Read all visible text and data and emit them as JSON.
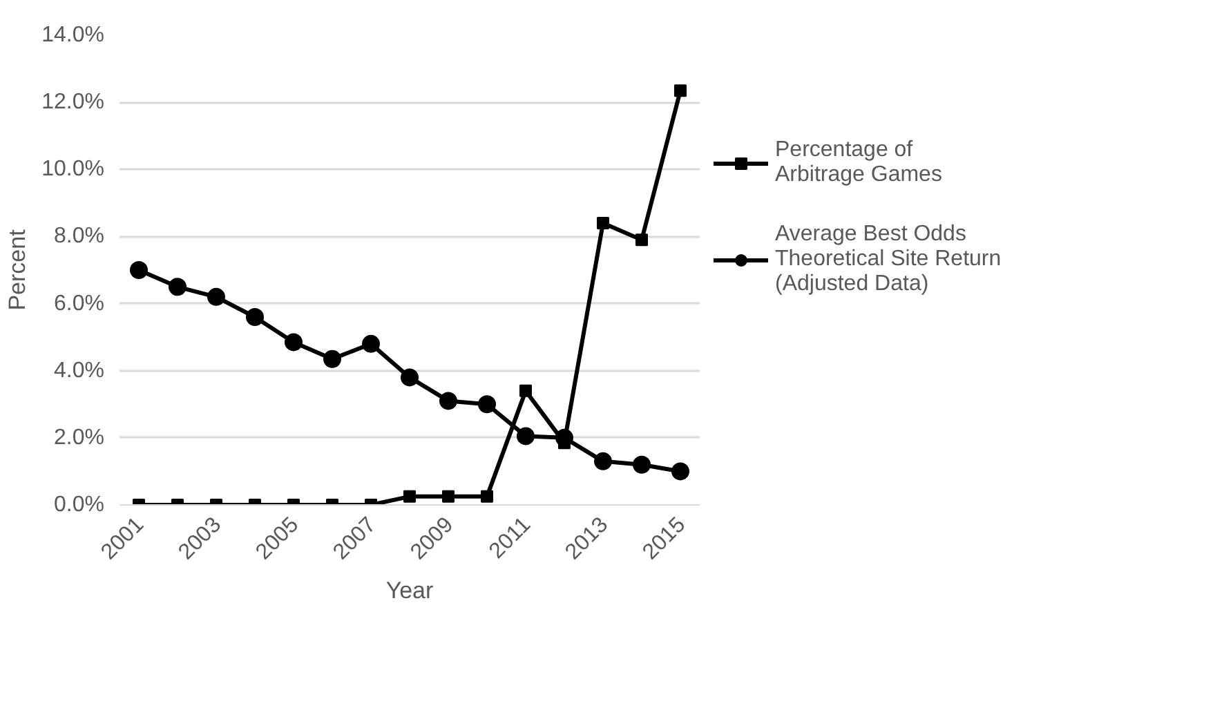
{
  "chart_data": {
    "type": "line",
    "xlabel": "Year",
    "ylabel": "Percent",
    "x": [
      2001,
      2002,
      2003,
      2004,
      2005,
      2006,
      2007,
      2008,
      2009,
      2010,
      2011,
      2012,
      2013,
      2014,
      2015
    ],
    "xlim": [
      2000.5,
      2015.5
    ],
    "xticks": [
      2001,
      2003,
      2005,
      2007,
      2009,
      2011,
      2013,
      2015
    ],
    "ylim": [
      0,
      14
    ],
    "yticks": [
      {
        "value": 0,
        "label": "0.0%"
      },
      {
        "value": 2,
        "label": "2.0%"
      },
      {
        "value": 4,
        "label": "4.0%"
      },
      {
        "value": 6,
        "label": "6.0%"
      },
      {
        "value": 8,
        "label": "8.0%"
      },
      {
        "value": 10,
        "label": "10.0%"
      },
      {
        "value": 12,
        "label": "12.0%"
      },
      {
        "value": 14,
        "label": "14.0%"
      }
    ],
    "grid": "y",
    "legend": "right",
    "line_style": "solid",
    "series": [
      {
        "name": "Percentage of Arbitrage Games",
        "color": "#000000",
        "marker": "square",
        "values": [
          0,
          0,
          0,
          0,
          0,
          0,
          0,
          0.25,
          0.25,
          0.25,
          3.4,
          1.85,
          8.4,
          7.9,
          12.35
        ]
      },
      {
        "name": "Average Best Odds Theoretical Site Return (Adjusted Data)",
        "color": "#000000",
        "marker": "circle",
        "values": [
          7.0,
          6.5,
          6.2,
          5.6,
          4.85,
          4.35,
          4.8,
          3.8,
          3.1,
          3.0,
          2.05,
          2.0,
          1.3,
          1.2,
          1.0
        ]
      }
    ]
  }
}
